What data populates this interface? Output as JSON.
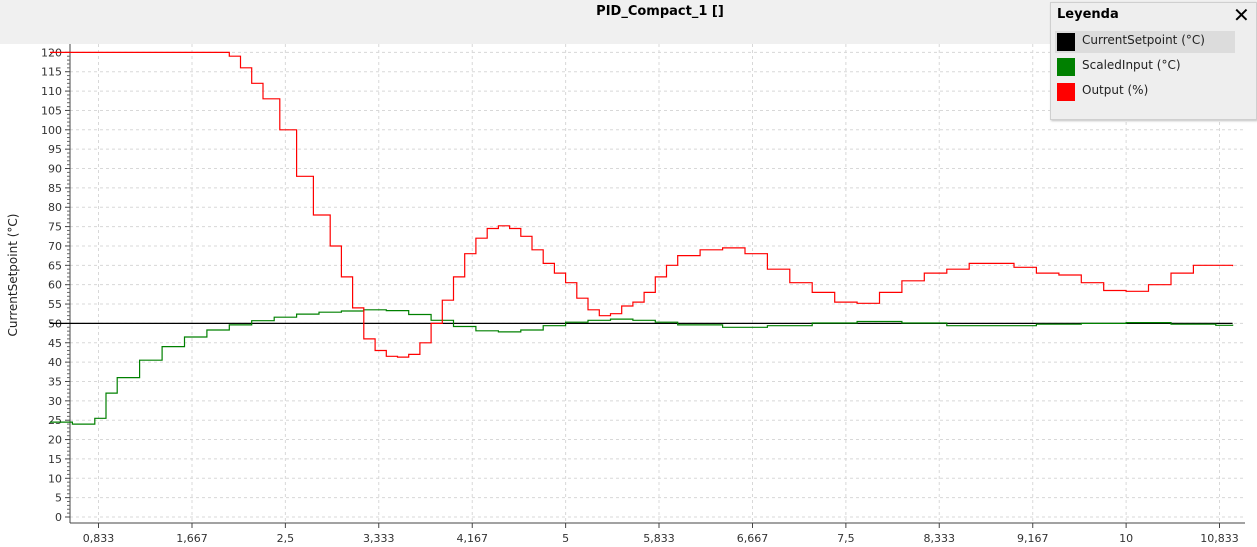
{
  "window": {
    "title": "PID_Compact_1 []"
  },
  "legend": {
    "title": "Leyenda",
    "items": [
      {
        "label": "CurrentSetpoint (°C)",
        "color": "#000000"
      },
      {
        "label": "ScaledInput (°C)",
        "color": "#008000"
      },
      {
        "label": "Output (%)",
        "color": "#ff0000"
      }
    ]
  },
  "chart_data": {
    "type": "line",
    "ylabel": "CurrentSetpoint (°C)",
    "xlabel": "",
    "ylim": [
      0,
      122
    ],
    "xlim": [
      0.35,
      11.0
    ],
    "grid": true,
    "legend_position": "top-right",
    "y_ticks": [
      "0",
      "5",
      "10",
      "15",
      "20",
      "25",
      "30",
      "35",
      "40",
      "45",
      "50",
      "55",
      "60",
      "65",
      "70",
      "75",
      "80",
      "85",
      "90",
      "95",
      "100",
      "105",
      "110",
      "115",
      "120"
    ],
    "x_ticks": [
      {
        "v": 0.833,
        "label": "0,833"
      },
      {
        "v": 1.667,
        "label": "1,667"
      },
      {
        "v": 2.5,
        "label": "2,5"
      },
      {
        "v": 3.333,
        "label": "3,333"
      },
      {
        "v": 4.167,
        "label": "4,167"
      },
      {
        "v": 5,
        "label": "5"
      },
      {
        "v": 5.833,
        "label": "5,833"
      },
      {
        "v": 6.667,
        "label": "6,667"
      },
      {
        "v": 7.5,
        "label": "7,5"
      },
      {
        "v": 8.333,
        "label": "8,333"
      },
      {
        "v": 9.167,
        "label": "9,167"
      },
      {
        "v": 10,
        "label": "10"
      },
      {
        "v": 10.833,
        "label": "10,833"
      }
    ],
    "series": [
      {
        "name": "CurrentSetpoint (°C)",
        "color": "#000000",
        "x": [
          0.4,
          10.95
        ],
        "y": [
          50,
          50
        ]
      },
      {
        "name": "ScaledInput (°C)",
        "color": "#008000",
        "x": [
          0.4,
          0.6,
          0.75,
          0.8,
          0.9,
          1.0,
          1.2,
          1.4,
          1.6,
          1.8,
          2.0,
          2.2,
          2.4,
          2.6,
          2.8,
          3.0,
          3.2,
          3.4,
          3.6,
          3.8,
          4.0,
          4.2,
          4.4,
          4.6,
          4.8,
          5.0,
          5.2,
          5.4,
          5.6,
          5.8,
          6.0,
          6.4,
          6.8,
          7.2,
          7.6,
          8.0,
          8.4,
          8.8,
          9.2,
          9.6,
          10.0,
          10.4,
          10.8,
          10.95
        ],
        "y": [
          24.5,
          24.0,
          24.0,
          25.5,
          32,
          36,
          40.5,
          44,
          46.5,
          48.3,
          49.6,
          50.7,
          51.6,
          52.4,
          52.9,
          53.2,
          53.5,
          53.3,
          52.3,
          50.8,
          49.2,
          48.1,
          47.8,
          48.3,
          49.4,
          50.3,
          50.8,
          51.1,
          50.8,
          50.3,
          49.6,
          49.0,
          49.4,
          50.1,
          50.5,
          50.1,
          49.4,
          49.4,
          49.8,
          50.0,
          50.2,
          49.8,
          49.5,
          49.7
        ]
      },
      {
        "name": "Output (%)",
        "color": "#ff0000",
        "x": [
          0.4,
          1.9,
          2.0,
          2.1,
          2.2,
          2.3,
          2.45,
          2.6,
          2.75,
          2.9,
          3.0,
          3.1,
          3.2,
          3.3,
          3.4,
          3.5,
          3.6,
          3.7,
          3.8,
          3.9,
          4.0,
          4.1,
          4.2,
          4.3,
          4.4,
          4.5,
          4.6,
          4.7,
          4.8,
          4.9,
          5.0,
          5.1,
          5.2,
          5.3,
          5.4,
          5.5,
          5.6,
          5.7,
          5.8,
          5.9,
          6.0,
          6.2,
          6.4,
          6.6,
          6.8,
          7.0,
          7.2,
          7.4,
          7.6,
          7.8,
          8.0,
          8.2,
          8.4,
          8.6,
          8.8,
          9.0,
          9.2,
          9.4,
          9.6,
          9.8,
          10.0,
          10.2,
          10.4,
          10.6,
          10.8,
          10.95
        ],
        "y": [
          120,
          120,
          119,
          116,
          112,
          108,
          100,
          88,
          78,
          70,
          62,
          54,
          46,
          43,
          41.5,
          41.3,
          42,
          45,
          50,
          56,
          62,
          68,
          72,
          74.5,
          75.2,
          74.5,
          72.5,
          69,
          65.5,
          63,
          60.5,
          56.5,
          53.5,
          52,
          52.5,
          54.5,
          55.5,
          58,
          62,
          65,
          67.5,
          69,
          69.5,
          68,
          64,
          60.5,
          58,
          55.5,
          55.2,
          58,
          61,
          63,
          64,
          65.5,
          65.5,
          64.5,
          63,
          62.5,
          60.5,
          58.5,
          58.3,
          60,
          63,
          65,
          65,
          64.8
        ]
      }
    ]
  }
}
